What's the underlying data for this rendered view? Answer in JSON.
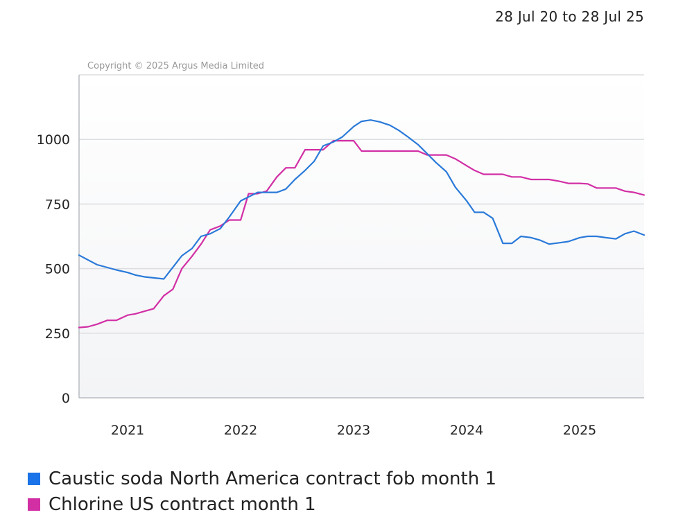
{
  "header": {
    "date_range": "28 Jul 20 to 28 Jul 25"
  },
  "chart_data": {
    "type": "line",
    "copyright": "Copyright © 2025 Argus Media Limited",
    "title": "",
    "xlabel": "",
    "ylabel": "",
    "xlim": [
      2020.57,
      2025.57
    ],
    "ylim": [
      0,
      1250
    ],
    "yticks": [
      0,
      250,
      500,
      750,
      1000
    ],
    "xticks": [
      "2021",
      "2022",
      "2023",
      "2024",
      "2025"
    ],
    "xtick_values": [
      2021,
      2022,
      2023,
      2024,
      2025
    ],
    "grid": true,
    "legend_position": "bottom-left",
    "series": [
      {
        "name": "Caustic soda North America contract fob month 1",
        "color": "#2a7ad9",
        "x": [
          2020.57,
          2020.73,
          2020.9,
          2021.0,
          2021.07,
          2021.15,
          2021.32,
          2021.4,
          2021.48,
          2021.57,
          2021.65,
          2021.73,
          2021.82,
          2021.9,
          2022.0,
          2022.15,
          2022.23,
          2022.32,
          2022.4,
          2022.48,
          2022.57,
          2022.65,
          2022.73,
          2022.82,
          2022.9,
          2023.0,
          2023.07,
          2023.15,
          2023.23,
          2023.32,
          2023.4,
          2023.48,
          2023.57,
          2023.65,
          2023.73,
          2023.82,
          2023.9,
          2024.0,
          2024.07,
          2024.15,
          2024.23,
          2024.32,
          2024.4,
          2024.48,
          2024.57,
          2024.65,
          2024.73,
          2024.82,
          2024.9,
          2025.0,
          2025.07,
          2025.15,
          2025.23,
          2025.32,
          2025.4,
          2025.48,
          2025.57
        ],
        "values": [
          552,
          515,
          495,
          485,
          475,
          468,
          460,
          505,
          550,
          578,
          625,
          635,
          655,
          700,
          762,
          795,
          795,
          795,
          808,
          845,
          880,
          915,
          975,
          990,
          1010,
          1050,
          1070,
          1075,
          1068,
          1055,
          1035,
          1010,
          980,
          945,
          910,
          875,
          815,
          762,
          718,
          718,
          695,
          598,
          598,
          625,
          620,
          610,
          595,
          600,
          605,
          620,
          625,
          625,
          620,
          615,
          635,
          645,
          630
        ]
      },
      {
        "name": "Chlorine US contract month 1",
        "color": "#d22fa5",
        "x": [
          2020.57,
          2020.65,
          2020.73,
          2020.82,
          2020.9,
          2021.0,
          2021.07,
          2021.15,
          2021.23,
          2021.32,
          2021.4,
          2021.48,
          2021.57,
          2021.65,
          2021.73,
          2021.82,
          2021.9,
          2022.0,
          2022.07,
          2022.15,
          2022.23,
          2022.32,
          2022.4,
          2022.48,
          2022.57,
          2022.65,
          2022.73,
          2022.82,
          2022.9,
          2023.0,
          2023.07,
          2023.15,
          2023.23,
          2023.32,
          2023.4,
          2023.48,
          2023.57,
          2023.65,
          2023.73,
          2023.82,
          2023.9,
          2024.0,
          2024.07,
          2024.15,
          2024.23,
          2024.32,
          2024.4,
          2024.48,
          2024.57,
          2024.65,
          2024.73,
          2024.82,
          2024.9,
          2025.0,
          2025.07,
          2025.15,
          2025.23,
          2025.32,
          2025.4,
          2025.48,
          2025.57
        ],
        "values": [
          272,
          275,
          285,
          300,
          300,
          320,
          325,
          335,
          345,
          395,
          420,
          500,
          548,
          595,
          650,
          665,
          688,
          688,
          790,
          790,
          800,
          855,
          890,
          890,
          960,
          960,
          960,
          995,
          995,
          995,
          955,
          955,
          955,
          955,
          955,
          955,
          955,
          940,
          940,
          940,
          925,
          898,
          880,
          865,
          865,
          865,
          855,
          855,
          845,
          845,
          845,
          838,
          830,
          830,
          828,
          812,
          812,
          812,
          800,
          795,
          785
        ]
      }
    ]
  },
  "legend": {
    "items": [
      {
        "label": "Caustic soda North America contract fob month 1",
        "color": "#1a73e8"
      },
      {
        "label": "Chlorine US contract month 1",
        "color": "#d22fa5"
      }
    ]
  }
}
